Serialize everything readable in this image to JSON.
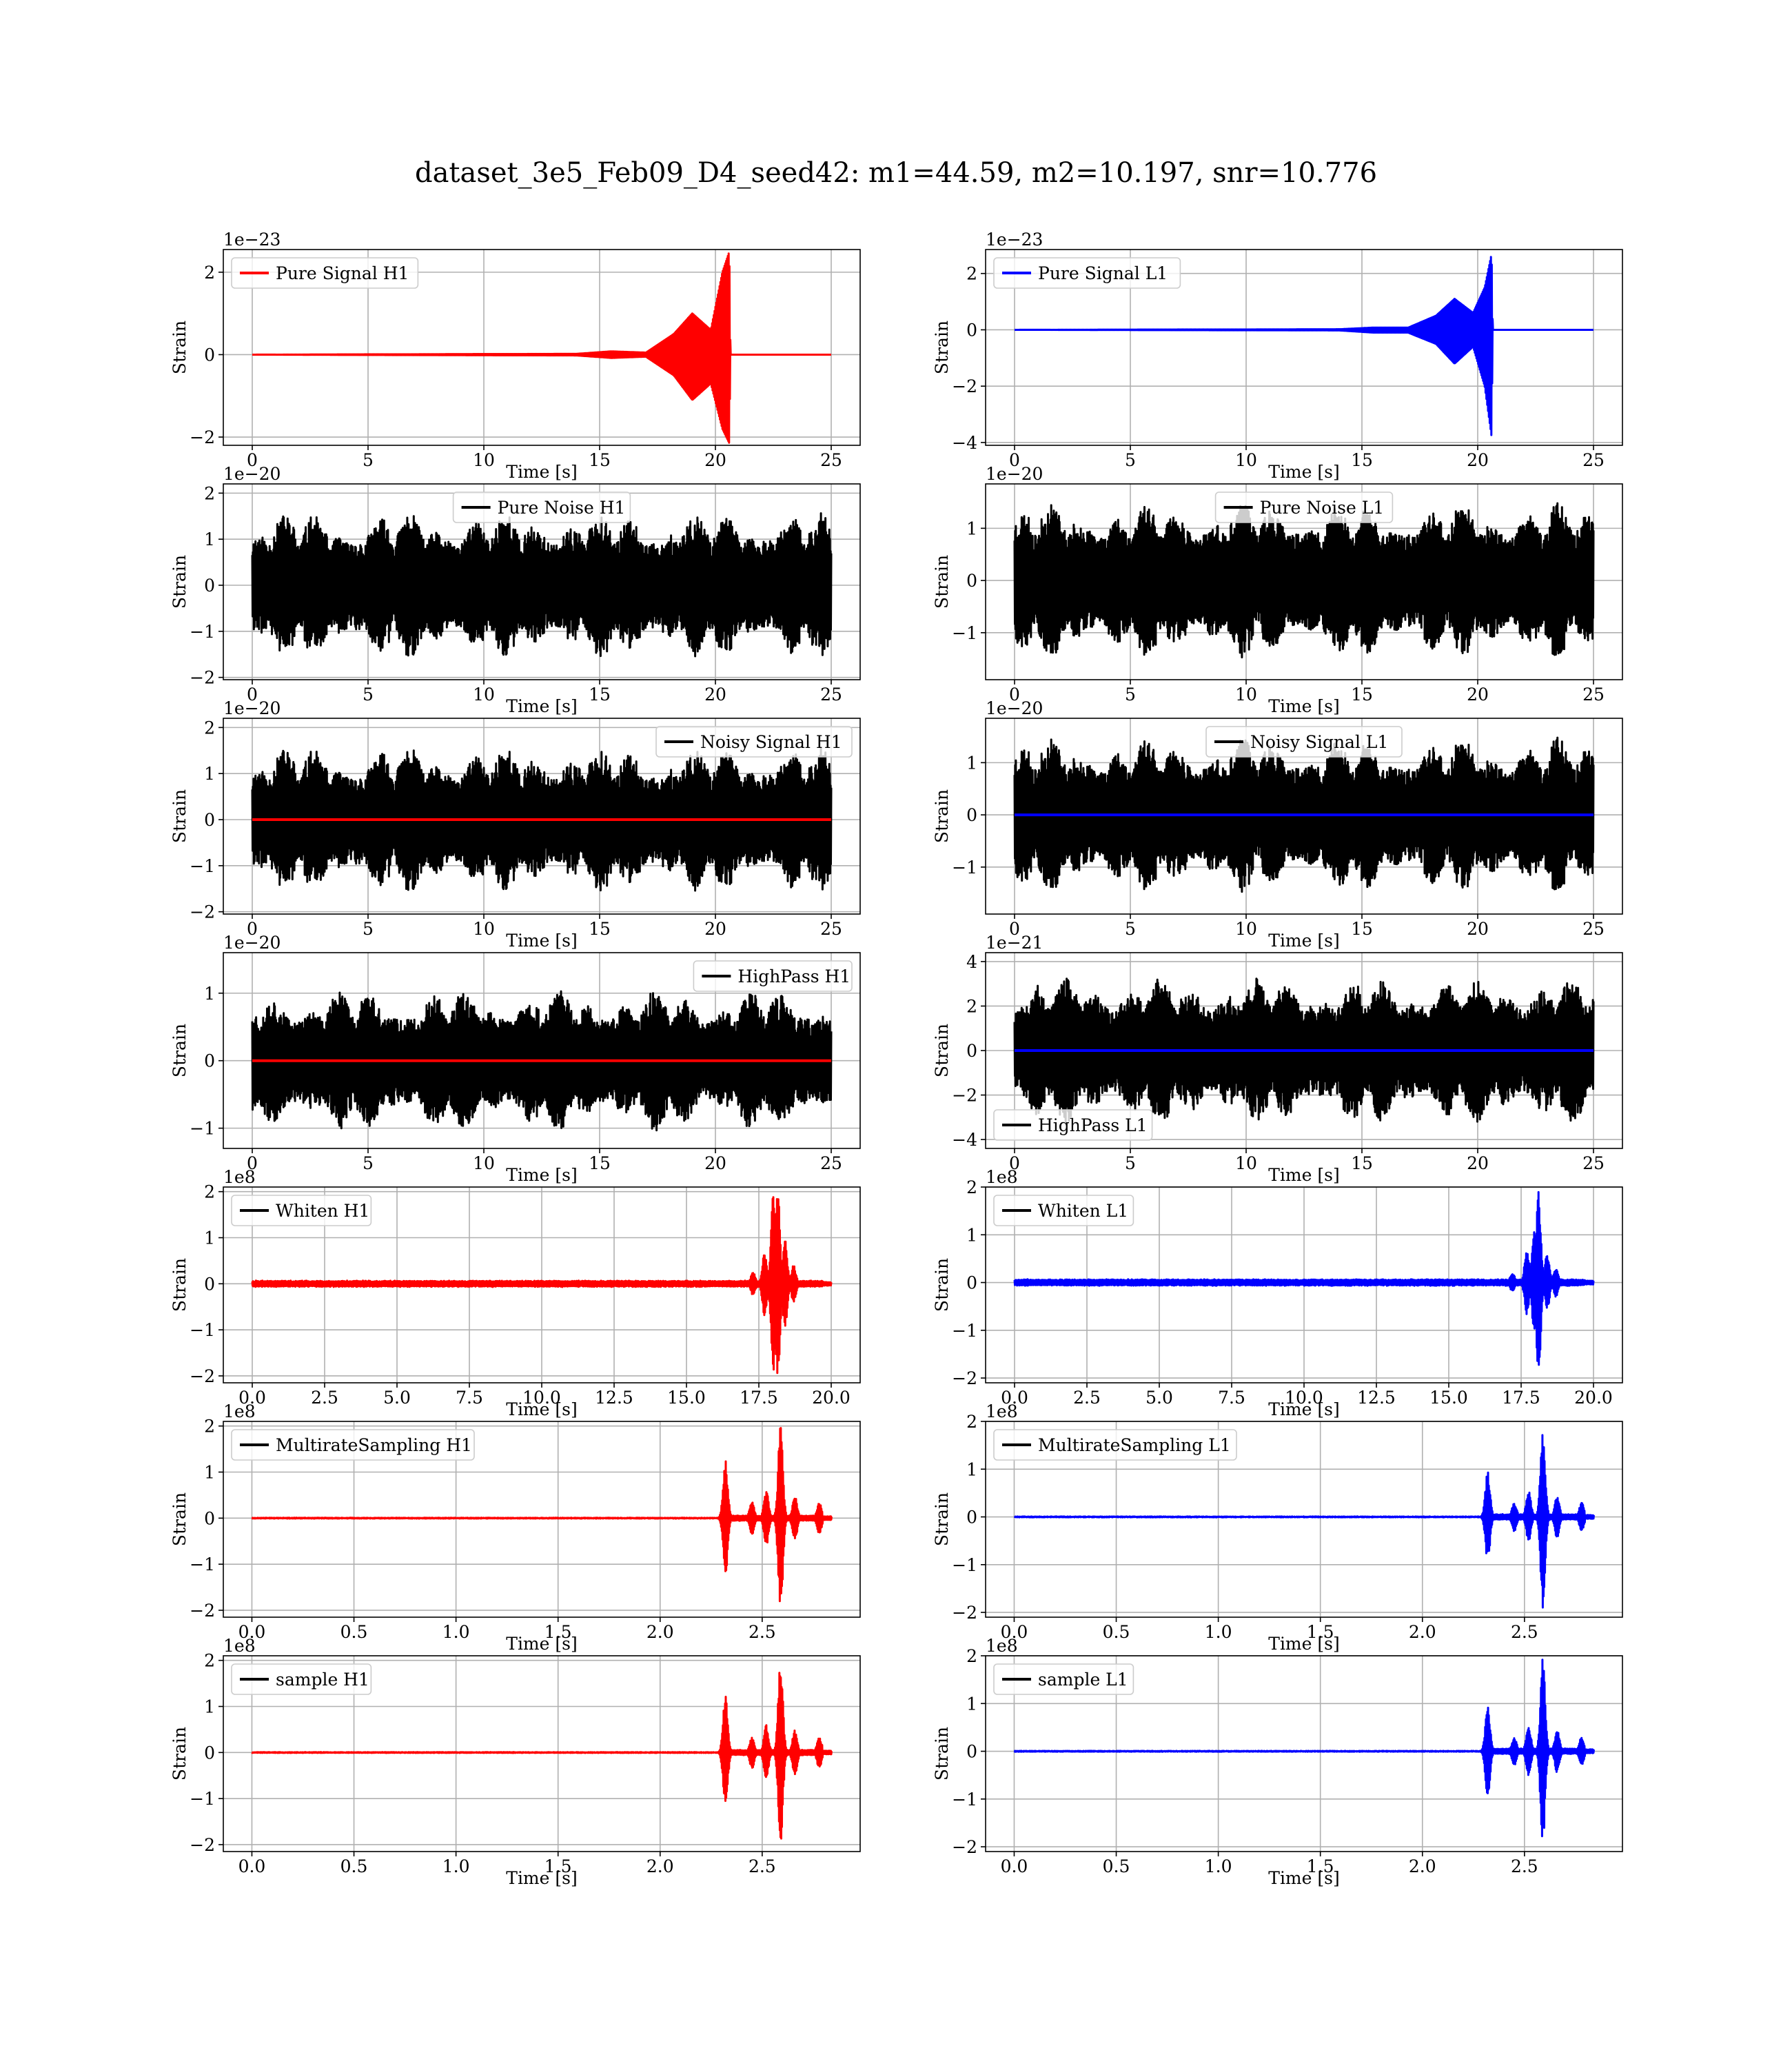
{
  "figure": {
    "suptitle": "dataset_3e5_Feb09_D4_seed42: m1=44.59, m2=10.197, snr=10.776",
    "colors": {
      "H1": "#ff0000",
      "L1": "#0000ff",
      "noise": "#000000",
      "grid": "#b0b0b0"
    }
  },
  "chart_data": [
    {
      "type": "line",
      "detector": "H1",
      "kind": "signal",
      "legend": "Pure Signal H1",
      "legend_loc": "upper left",
      "legend_line_color": "#ff0000",
      "xlabel": "Time [s]",
      "ylabel": "Strain",
      "offset_text": "1e−23",
      "xlim": [
        -1.25,
        26.25
      ],
      "ylim": [
        -2.2,
        2.55
      ],
      "xticks": [
        0,
        5,
        10,
        15,
        20,
        25
      ],
      "xtick_labels": [
        "0",
        "5",
        "10",
        "15",
        "20",
        "25"
      ],
      "yticks": [
        -2,
        0,
        2
      ],
      "ytick_labels": [
        "−2",
        "0",
        "2"
      ],
      "grid": true,
      "series": [
        {
          "color": "#ff0000",
          "t_end": 25,
          "envelope": [
            [
              0,
              0
            ],
            [
              14,
              0.02
            ],
            [
              15.5,
              0.08
            ],
            [
              17,
              0.05
            ],
            [
              18.2,
              0.5
            ],
            [
              19,
              1.0
            ],
            [
              19.8,
              0.6
            ],
            [
              20.3,
              2.0
            ],
            [
              20.6,
              2.5
            ],
            [
              20.65,
              0
            ]
          ],
          "env_lo": [
            [
              0,
              0
            ],
            [
              14,
              0.02
            ],
            [
              15.5,
              0.08
            ],
            [
              17,
              0.05
            ],
            [
              18.2,
              0.5
            ],
            [
              19,
              1.1
            ],
            [
              19.8,
              0.7
            ],
            [
              20.3,
              1.8
            ],
            [
              20.6,
              2.15
            ],
            [
              20.65,
              0
            ]
          ]
        }
      ]
    },
    {
      "type": "line",
      "detector": "L1",
      "kind": "signal",
      "legend": "Pure Signal L1",
      "legend_loc": "upper left",
      "legend_line_color": "#0000ff",
      "xlabel": "Time [s]",
      "ylabel": "Strain",
      "offset_text": "1e−23",
      "xlim": [
        -1.25,
        26.25
      ],
      "ylim": [
        -4.1,
        2.85
      ],
      "xticks": [
        0,
        5,
        10,
        15,
        20,
        25
      ],
      "xtick_labels": [
        "0",
        "5",
        "10",
        "15",
        "20",
        "25"
      ],
      "yticks": [
        -4,
        -2,
        0,
        2
      ],
      "ytick_labels": [
        "−4",
        "−2",
        "0",
        "2"
      ],
      "grid": true,
      "series": [
        {
          "color": "#0000ff",
          "t_end": 25,
          "envelope": [
            [
              0,
              0
            ],
            [
              14,
              0.02
            ],
            [
              15.5,
              0.08
            ],
            [
              17,
              0.08
            ],
            [
              18.2,
              0.5
            ],
            [
              19,
              1.1
            ],
            [
              19.8,
              0.6
            ],
            [
              20.3,
              1.5
            ],
            [
              20.6,
              2.7
            ],
            [
              20.65,
              0
            ]
          ],
          "env_lo": [
            [
              0,
              0
            ],
            [
              14,
              0.02
            ],
            [
              15.5,
              0.1
            ],
            [
              17,
              0.1
            ],
            [
              18.2,
              0.5
            ],
            [
              19,
              1.2
            ],
            [
              19.8,
              0.6
            ],
            [
              20.3,
              2.0
            ],
            [
              20.6,
              3.8
            ],
            [
              20.65,
              0
            ]
          ]
        }
      ]
    },
    {
      "type": "line",
      "detector": "H1",
      "kind": "noise",
      "legend": "Pure Noise H1",
      "legend_loc": "upper center",
      "legend_line_color": "#000000",
      "xlabel": "Time [s]",
      "ylabel": "Strain",
      "offset_text": "1e−20",
      "xlim": [
        -1.25,
        26.25
      ],
      "ylim": [
        -2.05,
        2.2
      ],
      "xticks": [
        0,
        5,
        10,
        15,
        20,
        25
      ],
      "xtick_labels": [
        "0",
        "5",
        "10",
        "15",
        "20",
        "25"
      ],
      "yticks": [
        -2,
        -1,
        0,
        1,
        2
      ],
      "ytick_labels": [
        "−2",
        "−1",
        "0",
        "1",
        "2"
      ],
      "grid": true,
      "series": [
        {
          "color": "#000000",
          "t_end": 25,
          "amp": 1.6,
          "seed": 11
        }
      ]
    },
    {
      "type": "line",
      "detector": "L1",
      "kind": "noise",
      "legend": "Pure Noise L1",
      "legend_loc": "upper center",
      "legend_line_color": "#000000",
      "xlabel": "Time [s]",
      "ylabel": "Strain",
      "offset_text": "1e−20",
      "xlim": [
        -1.25,
        26.25
      ],
      "ylim": [
        -1.9,
        1.85
      ],
      "xticks": [
        0,
        5,
        10,
        15,
        20,
        25
      ],
      "xtick_labels": [
        "0",
        "5",
        "10",
        "15",
        "20",
        "25"
      ],
      "yticks": [
        -1,
        0,
        1
      ],
      "ytick_labels": [
        "−1",
        "0",
        "1"
      ],
      "grid": true,
      "series": [
        {
          "color": "#000000",
          "t_end": 25,
          "amp": 1.5,
          "seed": 23
        }
      ]
    },
    {
      "type": "line",
      "detector": "H1",
      "kind": "noisy",
      "legend": "Noisy Signal H1",
      "legend_loc": "upper right",
      "legend_line_color": "#000000",
      "xlabel": "Time [s]",
      "ylabel": "Strain",
      "offset_text": "1e−20",
      "xlim": [
        -1.25,
        26.25
      ],
      "ylim": [
        -2.05,
        2.2
      ],
      "xticks": [
        0,
        5,
        10,
        15,
        20,
        25
      ],
      "xtick_labels": [
        "0",
        "5",
        "10",
        "15",
        "20",
        "25"
      ],
      "yticks": [
        -2,
        -1,
        0,
        1,
        2
      ],
      "ytick_labels": [
        "−2",
        "−1",
        "0",
        "1",
        "2"
      ],
      "grid": true,
      "series": [
        {
          "color": "#000000",
          "t_end": 25,
          "amp": 1.6,
          "seed": 11
        },
        {
          "color": "#ff0000",
          "t_end": 25,
          "flat": 0
        }
      ]
    },
    {
      "type": "line",
      "detector": "L1",
      "kind": "noisy",
      "legend": "Noisy Signal L1",
      "legend_loc": "upper center",
      "legend_line_color": "#000000",
      "xlabel": "Time [s]",
      "ylabel": "Strain",
      "offset_text": "1e−20",
      "xlim": [
        -1.25,
        26.25
      ],
      "ylim": [
        -1.9,
        1.85
      ],
      "xticks": [
        0,
        5,
        10,
        15,
        20,
        25
      ],
      "xtick_labels": [
        "0",
        "5",
        "10",
        "15",
        "20",
        "25"
      ],
      "yticks": [
        -1,
        0,
        1
      ],
      "ytick_labels": [
        "−1",
        "0",
        "1"
      ],
      "grid": true,
      "series": [
        {
          "color": "#000000",
          "t_end": 25,
          "amp": 1.5,
          "seed": 23
        },
        {
          "color": "#0000ff",
          "t_end": 25,
          "flat": 0
        }
      ]
    },
    {
      "type": "line",
      "detector": "H1",
      "kind": "highpass",
      "legend": "HighPass H1",
      "legend_loc": "upper right",
      "legend_line_color": "#000000",
      "xlabel": "Time [s]",
      "ylabel": "Strain",
      "offset_text": "1e−20",
      "xlim": [
        -1.25,
        26.25
      ],
      "ylim": [
        -1.3,
        1.6
      ],
      "xticks": [
        0,
        5,
        10,
        15,
        20,
        25
      ],
      "xtick_labels": [
        "0",
        "5",
        "10",
        "15",
        "20",
        "25"
      ],
      "yticks": [
        -1,
        0,
        1
      ],
      "ytick_labels": [
        "−1",
        "0",
        "1"
      ],
      "grid": true,
      "series": [
        {
          "color": "#000000",
          "t_end": 25,
          "amp": 1.05,
          "seed": 37
        },
        {
          "color": "#ff0000",
          "t_end": 25,
          "flat": 0
        }
      ]
    },
    {
      "type": "line",
      "detector": "L1",
      "kind": "highpass",
      "legend": "HighPass L1",
      "legend_loc": "lower left",
      "legend_line_color": "#000000",
      "xlabel": "Time [s]",
      "ylabel": "Strain",
      "offset_text": "1e−21",
      "xlim": [
        -1.25,
        26.25
      ],
      "ylim": [
        -4.4,
        4.4
      ],
      "xticks": [
        0,
        5,
        10,
        15,
        20,
        25
      ],
      "xtick_labels": [
        "0",
        "5",
        "10",
        "15",
        "20",
        "25"
      ],
      "yticks": [
        -4,
        -2,
        0,
        2,
        4
      ],
      "ytick_labels": [
        "−4",
        "−2",
        "0",
        "2",
        "4"
      ],
      "grid": true,
      "series": [
        {
          "color": "#000000",
          "t_end": 25,
          "amp": 3.3,
          "seed": 53
        },
        {
          "color": "#0000ff",
          "t_end": 25,
          "flat": 0
        }
      ]
    },
    {
      "type": "line",
      "detector": "H1",
      "kind": "whiten",
      "legend": "Whiten H1",
      "legend_loc": "upper left",
      "legend_line_color": "#000000",
      "xlabel": "Time [s]",
      "ylabel": "Strain",
      "offset_text": "1e8",
      "xlim": [
        -1.0,
        21.0
      ],
      "ylim": [
        -2.15,
        2.1
      ],
      "xticks": [
        0,
        2.5,
        5,
        7.5,
        10,
        12.5,
        15,
        17.5,
        20
      ],
      "xtick_labels": [
        "0.0",
        "2.5",
        "5.0",
        "7.5",
        "10.0",
        "12.5",
        "15.0",
        "17.5",
        "20.0"
      ],
      "yticks": [
        -2,
        -1,
        0,
        1,
        2
      ],
      "ytick_labels": [
        "−2",
        "−1",
        "0",
        "1",
        "2"
      ],
      "grid": true,
      "series": [
        {
          "color": "#ff0000",
          "t_end": 20,
          "bursts": [
            [
              17.3,
              0.25
            ],
            [
              17.7,
              0.7
            ],
            [
              18.0,
              1.95
            ],
            [
              18.15,
              2.1
            ],
            [
              18.4,
              1.0
            ],
            [
              18.7,
              0.4
            ]
          ],
          "base": 0.02
        }
      ]
    },
    {
      "type": "line",
      "detector": "L1",
      "kind": "whiten",
      "legend": "Whiten L1",
      "legend_loc": "upper left",
      "legend_line_color": "#000000",
      "xlabel": "Time [s]",
      "ylabel": "Strain",
      "offset_text": "1e8",
      "xlim": [
        -1.0,
        21.0
      ],
      "ylim": [
        -2.1,
        2.0
      ],
      "xticks": [
        0,
        2.5,
        5,
        7.5,
        10,
        12.5,
        15,
        17.5,
        20
      ],
      "xtick_labels": [
        "0.0",
        "2.5",
        "5.0",
        "7.5",
        "10.0",
        "12.5",
        "15.0",
        "17.5",
        "20.0"
      ],
      "yticks": [
        -2,
        -1,
        0,
        1,
        2
      ],
      "ytick_labels": [
        "−2",
        "−1",
        "0",
        "1",
        "2"
      ],
      "grid": true,
      "series": [
        {
          "color": "#0000ff",
          "t_end": 20,
          "bursts": [
            [
              17.2,
              0.2
            ],
            [
              17.7,
              0.7
            ],
            [
              17.95,
              1.1
            ],
            [
              18.1,
              1.95
            ],
            [
              18.4,
              0.6
            ],
            [
              18.7,
              0.3
            ]
          ],
          "base": 0.02
        }
      ]
    },
    {
      "type": "line",
      "detector": "H1",
      "kind": "multirate",
      "legend": "MultirateSampling H1",
      "legend_loc": "upper left",
      "legend_line_color": "#000000",
      "xlabel": "Time [s]",
      "ylabel": "Strain",
      "offset_text": "1e8",
      "xlim": [
        -0.14,
        2.98
      ],
      "ylim": [
        -2.15,
        2.1
      ],
      "xticks": [
        0,
        0.5,
        1.0,
        1.5,
        2.0,
        2.5
      ],
      "xtick_labels": [
        "0.0",
        "0.5",
        "1.0",
        "1.5",
        "2.0",
        "2.5"
      ],
      "yticks": [
        -2,
        -1,
        0,
        1,
        2
      ],
      "ytick_labels": [
        "−2",
        "−1",
        "0",
        "1",
        "2"
      ],
      "grid": true,
      "series": [
        {
          "color": "#ff0000",
          "t_end": 2.84,
          "bursts": [
            [
              2.32,
              1.25
            ],
            [
              2.45,
              0.35
            ],
            [
              2.52,
              0.6
            ],
            [
              2.59,
              2.05
            ],
            [
              2.66,
              0.5
            ],
            [
              2.78,
              0.35
            ]
          ],
          "base": 0.01,
          "t_on": 2.3
        }
      ]
    },
    {
      "type": "line",
      "detector": "L1",
      "kind": "multirate",
      "legend": "MultirateSampling L1",
      "legend_loc": "upper left",
      "legend_line_color": "#000000",
      "xlabel": "Time [s]",
      "ylabel": "Strain",
      "offset_text": "1e8",
      "xlim": [
        -0.14,
        2.98
      ],
      "ylim": [
        -2.1,
        2.0
      ],
      "xticks": [
        0,
        0.5,
        1.0,
        1.5,
        2.0,
        2.5
      ],
      "xtick_labels": [
        "0.0",
        "0.5",
        "1.0",
        "1.5",
        "2.0",
        "2.5"
      ],
      "yticks": [
        -2,
        -1,
        0,
        1,
        2
      ],
      "ytick_labels": [
        "−2",
        "−1",
        "0",
        "1",
        "2"
      ],
      "grid": true,
      "series": [
        {
          "color": "#0000ff",
          "t_end": 2.84,
          "bursts": [
            [
              2.32,
              0.95
            ],
            [
              2.45,
              0.3
            ],
            [
              2.52,
              0.55
            ],
            [
              2.59,
              1.95
            ],
            [
              2.66,
              0.45
            ],
            [
              2.78,
              0.3
            ]
          ],
          "base": 0.01,
          "t_on": 2.3
        }
      ]
    },
    {
      "type": "line",
      "detector": "H1",
      "kind": "sample",
      "legend": "sample H1",
      "legend_loc": "upper left",
      "legend_line_color": "#000000",
      "xlabel": "Time [s]",
      "ylabel": "Strain",
      "offset_text": "1e8",
      "xlim": [
        -0.14,
        2.98
      ],
      "ylim": [
        -2.15,
        2.1
      ],
      "xticks": [
        0,
        0.5,
        1.0,
        1.5,
        2.0,
        2.5
      ],
      "xtick_labels": [
        "0.0",
        "0.5",
        "1.0",
        "1.5",
        "2.0",
        "2.5"
      ],
      "yticks": [
        -2,
        -1,
        0,
        1,
        2
      ],
      "ytick_labels": [
        "−2",
        "−1",
        "0",
        "1",
        "2"
      ],
      "grid": true,
      "series": [
        {
          "color": "#ff0000",
          "t_end": 2.84,
          "bursts": [
            [
              2.32,
              1.25
            ],
            [
              2.45,
              0.35
            ],
            [
              2.52,
              0.6
            ],
            [
              2.59,
              2.05
            ],
            [
              2.66,
              0.5
            ],
            [
              2.78,
              0.35
            ]
          ],
          "base": 0.01,
          "t_on": 2.3
        }
      ]
    },
    {
      "type": "line",
      "detector": "L1",
      "kind": "sample",
      "legend": "sample L1",
      "legend_loc": "upper left",
      "legend_line_color": "#000000",
      "xlabel": "Time [s]",
      "ylabel": "Strain",
      "offset_text": "1e8",
      "xlim": [
        -0.14,
        2.98
      ],
      "ylim": [
        -2.1,
        2.0
      ],
      "xticks": [
        0,
        0.5,
        1.0,
        1.5,
        2.0,
        2.5
      ],
      "xtick_labels": [
        "0.0",
        "0.5",
        "1.0",
        "1.5",
        "2.0",
        "2.5"
      ],
      "yticks": [
        -2,
        -1,
        0,
        1,
        2
      ],
      "ytick_labels": [
        "−2",
        "−1",
        "0",
        "1",
        "2"
      ],
      "grid": true,
      "series": [
        {
          "color": "#0000ff",
          "t_end": 2.84,
          "bursts": [
            [
              2.32,
              0.95
            ],
            [
              2.45,
              0.3
            ],
            [
              2.52,
              0.55
            ],
            [
              2.59,
              1.95
            ],
            [
              2.66,
              0.45
            ],
            [
              2.78,
              0.3
            ]
          ],
          "base": 0.01,
          "t_on": 2.3
        }
      ]
    }
  ]
}
